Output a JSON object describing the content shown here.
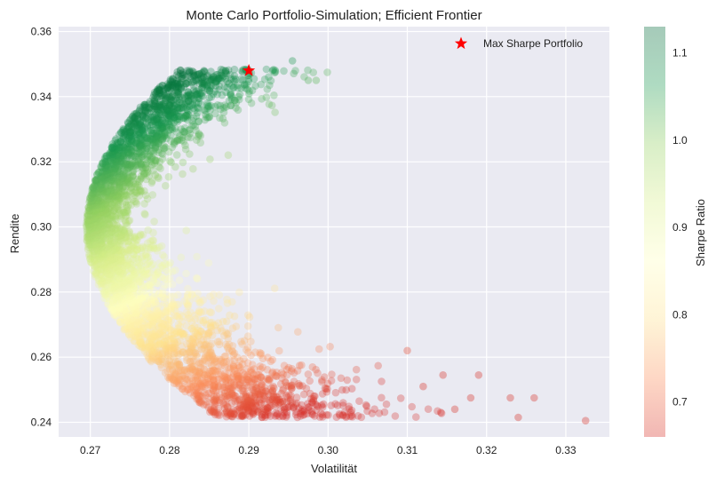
{
  "chart_data": {
    "type": "scatter",
    "title": "Monte Carlo Portfolio-Simulation; Efficient Frontier",
    "xlabel": "Volatilität",
    "ylabel": "Rendite",
    "xlim": [
      0.266,
      0.3355
    ],
    "ylim": [
      0.2355,
      0.3615
    ],
    "xticks": [
      "0.27",
      "0.28",
      "0.29",
      "0.30",
      "0.31",
      "0.32",
      "0.33"
    ],
    "yticks": [
      "0.24",
      "0.26",
      "0.28",
      "0.30",
      "0.32",
      "0.34",
      "0.36"
    ],
    "grid": true,
    "background": "#eaeaf2",
    "colormap": "RdYlGn",
    "colorbar": {
      "label": "Sharpe Ratio",
      "range": [
        0.66,
        1.13
      ],
      "ticks": [
        "0.7",
        "0.8",
        "0.9",
        "1.0",
        "1.1"
      ],
      "colors": [
        "#d73027",
        "#fc8d59",
        "#fee08b",
        "#ffffbf",
        "#d9ef8b",
        "#91cf60",
        "#1a9850",
        "#006837"
      ]
    },
    "legend": {
      "position": "top-right",
      "entries": [
        "Max Sharpe Portfolio"
      ]
    },
    "max_sharpe_portfolio": {
      "x": 0.29,
      "y": 0.348,
      "marker": "star",
      "color": "#ff0000"
    },
    "frontier": {
      "min_volatility": 0.2695,
      "min_volatility_return": 0.2995,
      "points": [
        [
          0.2695,
          0.2995
        ],
        [
          0.271,
          0.31
        ],
        [
          0.274,
          0.319
        ],
        [
          0.278,
          0.327
        ],
        [
          0.283,
          0.334
        ],
        [
          0.287,
          0.34
        ],
        [
          0.29,
          0.348
        ],
        [
          0.271,
          0.289
        ],
        [
          0.274,
          0.28
        ],
        [
          0.279,
          0.272
        ],
        [
          0.285,
          0.265
        ],
        [
          0.292,
          0.259
        ],
        [
          0.3,
          0.254
        ],
        [
          0.31,
          0.249
        ],
        [
          0.32,
          0.245
        ],
        [
          0.33,
          0.2415
        ]
      ]
    },
    "outliers": [
      [
        0.2975,
        0.345
      ],
      [
        0.2985,
        0.345
      ],
      [
        0.2955,
        0.351
      ],
      [
        0.293,
        0.348
      ],
      [
        0.31,
        0.262
      ],
      [
        0.318,
        0.2475
      ],
      [
        0.319,
        0.2545
      ],
      [
        0.323,
        0.2475
      ],
      [
        0.324,
        0.2415
      ],
      [
        0.326,
        0.2475
      ],
      [
        0.3325,
        0.2405
      ],
      [
        0.3145,
        0.2545
      ],
      [
        0.316,
        0.244
      ],
      [
        0.312,
        0.251
      ]
    ],
    "n_points": 4000,
    "marker_alpha": 0.3
  }
}
